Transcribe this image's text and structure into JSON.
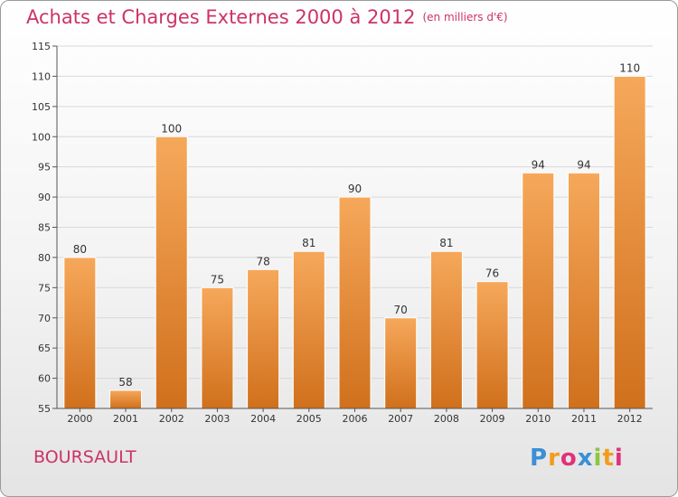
{
  "header": {
    "title": "Achats et Charges Externes 2000 à 2012",
    "unit": "(en milliers d'€)"
  },
  "footer": {
    "commune": "BOURSAULT",
    "logo": {
      "letters": [
        "P",
        "r",
        "o",
        "x",
        "i",
        "t",
        "i"
      ],
      "colors": [
        "#3a8fd6",
        "#f29c1f",
        "#e0327a",
        "#3a8fd6",
        "#8cc63f",
        "#f29c1f",
        "#e0327a"
      ]
    }
  },
  "colors": {
    "bar_top": "#f6a85a",
    "bar_bottom": "#d0701c",
    "title": "#cc3366",
    "grid": "#d8d8d8",
    "axis": "#555555"
  },
  "chart_data": {
    "type": "bar",
    "categories": [
      "2000",
      "2001",
      "2002",
      "2003",
      "2004",
      "2005",
      "2006",
      "2007",
      "2008",
      "2009",
      "2010",
      "2011",
      "2012"
    ],
    "values": [
      80,
      58,
      100,
      75,
      78,
      81,
      90,
      70,
      81,
      76,
      94,
      94,
      110
    ],
    "data_labels": [
      "80",
      "58",
      "100",
      "75",
      "78",
      "81",
      "90",
      "70",
      "81",
      "76",
      "94",
      "94",
      "110"
    ],
    "y_ticks": [
      "55",
      "60",
      "65",
      "70",
      "75",
      "80",
      "85",
      "90",
      "95",
      "100",
      "105",
      "110",
      "115"
    ],
    "ylim": [
      55,
      115
    ],
    "grid": true
  }
}
